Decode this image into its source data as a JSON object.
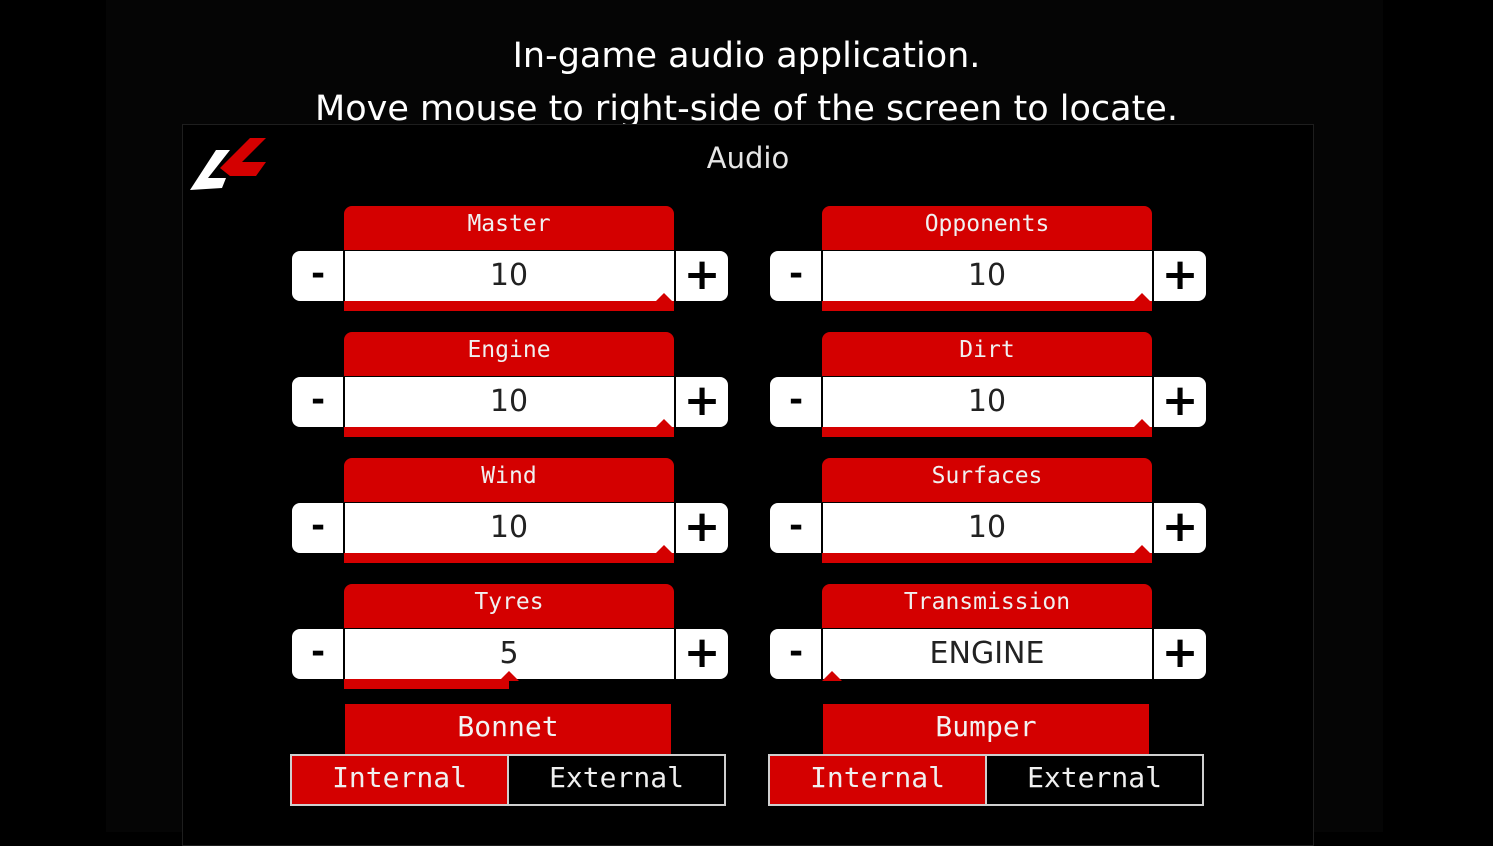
{
  "caption": {
    "line1": "In-game audio application.",
    "line2": "Move mouse to right-side of the screen to locate."
  },
  "panel": {
    "title": "Audio",
    "logo_icon": "ac-logo-icon"
  },
  "accent_color": "#d40000",
  "controls": {
    "minus_label": "-",
    "plus_label": "+"
  },
  "sliders": {
    "master": {
      "label": "Master",
      "value": "10",
      "level": 1.0
    },
    "opponents": {
      "label": "Opponents",
      "value": "10",
      "level": 1.0
    },
    "engine": {
      "label": "Engine",
      "value": "10",
      "level": 1.0
    },
    "dirt": {
      "label": "Dirt",
      "value": "10",
      "level": 1.0
    },
    "wind": {
      "label": "Wind",
      "value": "10",
      "level": 1.0
    },
    "surfaces": {
      "label": "Surfaces",
      "value": "10",
      "level": 1.0
    },
    "tyres": {
      "label": "Tyres",
      "value": "5",
      "level": 0.5
    },
    "transmission": {
      "label": "Transmission",
      "value": "ENGINE",
      "level": 0.0
    }
  },
  "toggles": {
    "bonnet": {
      "label": "Bonnet",
      "options": [
        "Internal",
        "External"
      ],
      "selected": "Internal"
    },
    "bumper": {
      "label": "Bumper",
      "options": [
        "Internal",
        "External"
      ],
      "selected": "Internal"
    }
  }
}
